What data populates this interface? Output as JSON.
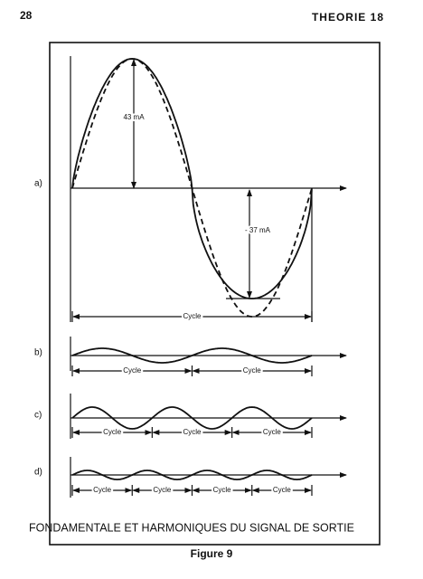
{
  "header": {
    "page_number": "28",
    "section": "THEORIE 18"
  },
  "figure": {
    "panels": [
      {
        "label": "a)",
        "annotations": [
          "43 mA",
          "- 37 mA"
        ],
        "cycle_labels": [
          "Cycle"
        ]
      },
      {
        "label": "b)",
        "cycle_labels": [
          "Cycle",
          "Cycle"
        ]
      },
      {
        "label": "c)",
        "cycle_labels": [
          "Cycle",
          "Cycle",
          "Cycle"
        ]
      },
      {
        "label": "d)",
        "cycle_labels": [
          "Cycle",
          "Cycle",
          "Cycle",
          "Cycle"
        ]
      }
    ],
    "caption": "FONDAMENTALE ET HARMONIQUES DU SIGNAL DE SORTIE",
    "title": "Figure 9"
  }
}
